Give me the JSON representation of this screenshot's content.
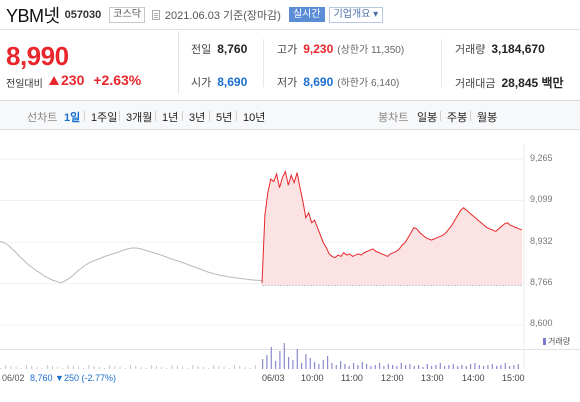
{
  "header": {
    "name": "YBM넷",
    "code": "057030",
    "market": "코스닥",
    "date": "2021.06.03 기준(장마감)",
    "realtime": "실시간",
    "overview": "기업개요"
  },
  "price": {
    "current": "8,990",
    "change_label": "전일대비",
    "change": "230",
    "change_pct": "+2.63%"
  },
  "info": {
    "prev_label": "전일",
    "prev": "8,760",
    "high_label": "고가",
    "high": "9,230",
    "upper_limit": "(상한가 11,350)",
    "volume_label": "거래량",
    "volume": "3,184,670",
    "open_label": "시가",
    "open": "8,690",
    "low_label": "저가",
    "low": "8,690",
    "lower_limit": "(하한가 6,140)",
    "amount_label": "거래대금",
    "amount": "28,845 백만"
  },
  "toolbar": {
    "line_chart": "선차트",
    "d1": "1일",
    "w1": "1주일",
    "m3": "3개월",
    "y1": "1년",
    "y3": "3년",
    "y5": "5년",
    "y10": "10년",
    "candle_chart": "봉차트",
    "daily": "일봉",
    "weekly": "주봉",
    "monthly": "월봉"
  },
  "chart_data": {
    "type": "line",
    "y_ticks": [
      "9,265",
      "9,099",
      "8,932",
      "8,766",
      "8,600"
    ],
    "ylim": [
      8600,
      9265
    ],
    "prev_close": 8760,
    "x_ticks": [
      "06/03",
      "10:00",
      "11:00",
      "12:00",
      "13:00",
      "14:00",
      "15:00"
    ],
    "volume_label": "거래량",
    "prev_day": {
      "date": "06/02",
      "close": "8,760",
      "change": "250",
      "change_pct": "(-2.77%)"
    },
    "series": [
      {
        "values": [
          8935,
          8930,
          8920,
          8905,
          8890,
          8872,
          8858,
          8842,
          8830,
          8818,
          8808,
          8796,
          8788,
          8780,
          8775,
          8770,
          8775,
          8785,
          8798,
          8812,
          8825,
          8838,
          8848,
          8855,
          8862,
          8868,
          8875,
          8880,
          8885,
          8890,
          8896,
          8902,
          8906,
          8909,
          8908,
          8905,
          8900,
          8895,
          8890,
          8885,
          8880,
          8874,
          8868,
          8862,
          8857,
          8852,
          8846,
          8840,
          8834,
          8828,
          8822,
          8816,
          8810,
          8806,
          8802,
          8798,
          8795,
          8792,
          8790,
          8788,
          8786,
          8784,
          8782,
          8780,
          8779,
          8778
        ]
      },
      {
        "values": [
          8768,
          9040,
          9130,
          9185,
          9175,
          9205,
          9150,
          9190,
          9215,
          9160,
          9200,
          9170,
          9210,
          9150,
          9095,
          9030,
          9050,
          9010,
          9020,
          8990,
          8960,
          8930,
          8910,
          8885,
          8875,
          8870,
          8880,
          8875,
          8890,
          8880,
          8885,
          8875,
          8880,
          8885,
          8880,
          8890,
          8895,
          8900,
          8905,
          8895,
          8890,
          8885,
          8880,
          8875,
          8885,
          8890,
          8895,
          8905,
          8920,
          8930,
          8950,
          8970,
          8990,
          8985,
          8970,
          8960,
          8950,
          8945,
          8940,
          8945,
          8950,
          8955,
          8960,
          8970,
          8985,
          9000,
          9020,
          9040,
          9060,
          9070,
          9060,
          9050,
          9040,
          9030,
          9020,
          9010,
          9000,
          8990,
          8985,
          8980,
          8975,
          8985,
          8995,
          9005,
          9010,
          9000,
          8995,
          8990,
          8985,
          8980
        ]
      }
    ]
  },
  "colors": {
    "up": "#e8262c",
    "down": "#1a6fd1",
    "accent": "#5b8dd6"
  }
}
